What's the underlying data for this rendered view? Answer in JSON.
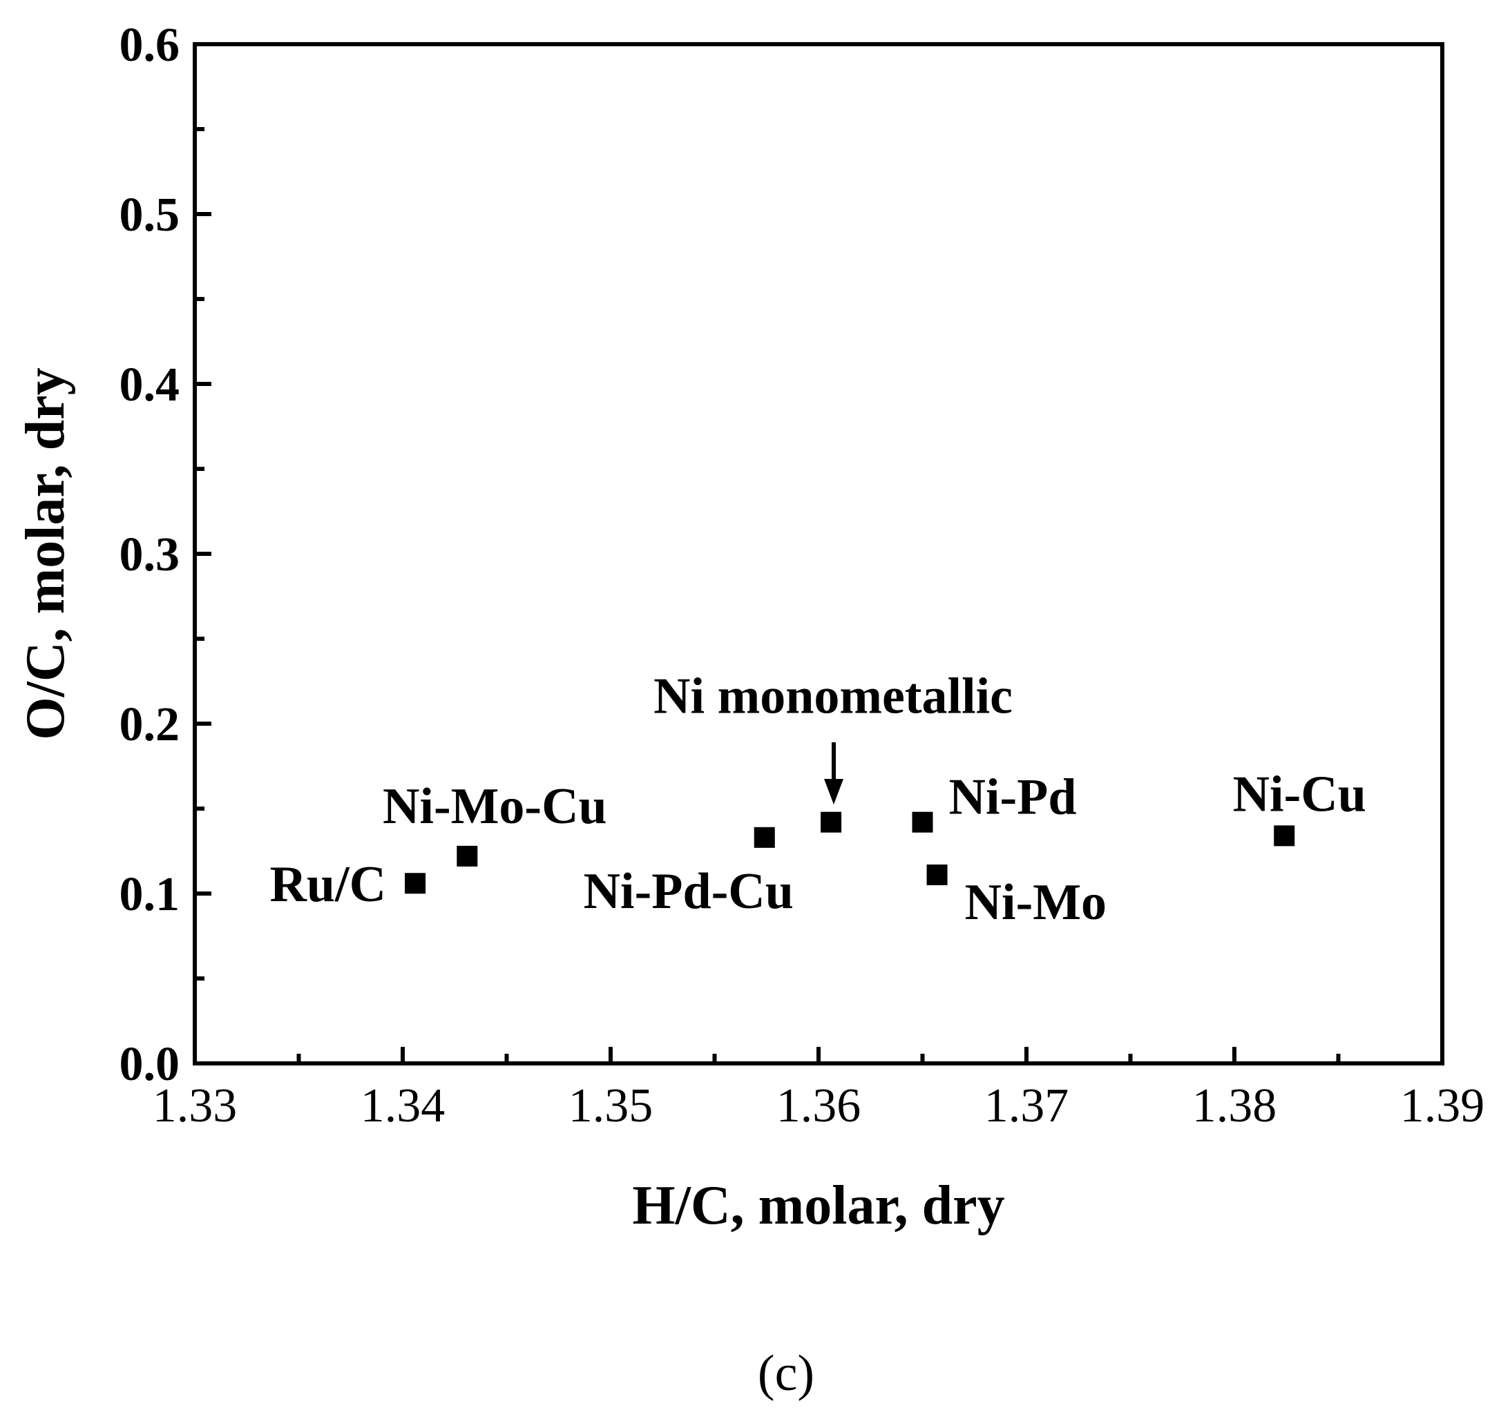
{
  "chart_data": {
    "type": "scatter",
    "xlabel": "H/C, molar, dry",
    "ylabel": "O/C, molar, dry",
    "panel_label": "(c)",
    "xlim": [
      1.33,
      1.39
    ],
    "ylim": [
      0.0,
      0.6
    ],
    "x_ticks": [
      "1.33",
      "1.34",
      "1.35",
      "1.36",
      "1.37",
      "1.38",
      "1.39"
    ],
    "y_ticks": [
      "0.0",
      "0.1",
      "0.2",
      "0.3",
      "0.4",
      "0.5",
      "0.6"
    ],
    "grid": false,
    "marker": "square",
    "color": "#000000",
    "points": [
      {
        "label": "Ru/C",
        "x": 1.3406,
        "y": 0.106
      },
      {
        "label": "Ni-Mo-Cu",
        "x": 1.3431,
        "y": 0.122
      },
      {
        "label": "Ni-Pd-Cu",
        "x": 1.3574,
        "y": 0.133
      },
      {
        "label": "Ni monometallic",
        "x": 1.3606,
        "y": 0.142
      },
      {
        "label": "Ni-Pd",
        "x": 1.365,
        "y": 0.142
      },
      {
        "label": "Ni-Mo",
        "x": 1.3657,
        "y": 0.111
      },
      {
        "label": "Ni-Cu",
        "x": 1.3824,
        "y": 0.134
      }
    ]
  }
}
